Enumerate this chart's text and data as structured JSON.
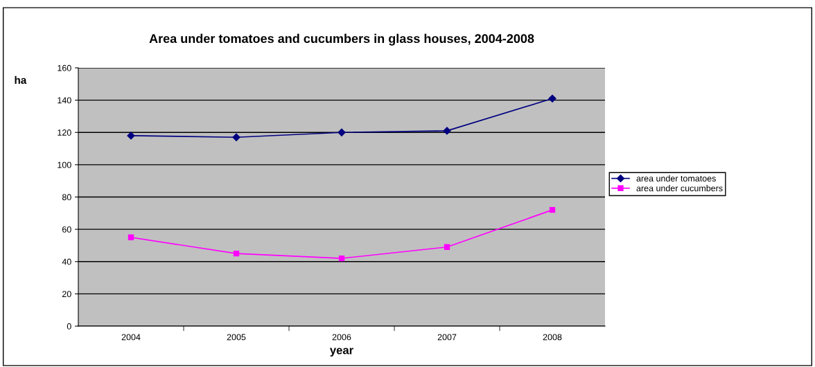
{
  "chart_data": {
    "type": "line",
    "title": "Area under tomatoes and cucumbers in glass houses, 2004-2008",
    "xlabel": "year",
    "ylabel": "ha",
    "categories": [
      "2004",
      "2005",
      "2006",
      "2007",
      "2008"
    ],
    "series": [
      {
        "name": "area under tomatoes",
        "color": "#000080",
        "marker": "diamond",
        "values": [
          118,
          117,
          120,
          121,
          141
        ]
      },
      {
        "name": "area under cucumbers",
        "color": "#ff00ff",
        "marker": "square",
        "values": [
          55,
          45,
          42,
          49,
          72
        ]
      }
    ],
    "ylim": [
      0,
      160
    ],
    "yticks": [
      0,
      20,
      40,
      60,
      80,
      100,
      120,
      140,
      160
    ],
    "grid": "y",
    "legend": "right"
  }
}
